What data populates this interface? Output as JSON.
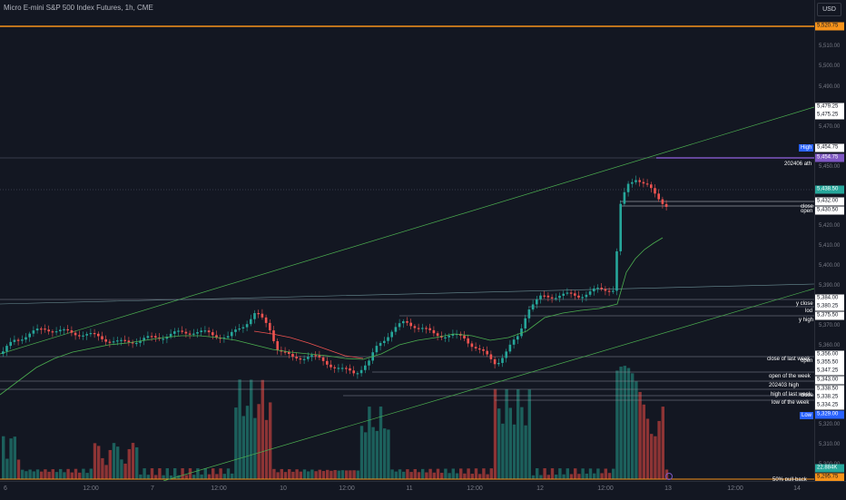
{
  "header": {
    "title": "Micro E-mini S&P 500 Index Futures, 1h, CME"
  },
  "currency_button": "USD",
  "price_ticks": [
    "5,510.00",
    "5,500.00",
    "5,490.00",
    "5,470.00",
    "5,450.00",
    "5,420.00",
    "5,410.00",
    "5,400.00",
    "5,390.00",
    "5,370.00",
    "5,360.00",
    "5,320.00",
    "5,310.00",
    "5,300.00"
  ],
  "price_labels": [
    {
      "text": "5,520.75",
      "bg": "#f7931a",
      "color": "#131722"
    },
    {
      "text": "5,479.25",
      "bg": "#ffffff",
      "color": "#131722"
    },
    {
      "text": "5,475.25",
      "bg": "#ffffff",
      "color": "#131722"
    },
    {
      "text": "5,454.75",
      "bg": "#ffffff",
      "color": "#131722"
    },
    {
      "text": "5,454.75",
      "bg": "#7e57c2",
      "color": "#ffffff"
    },
    {
      "text": "5,438.50",
      "bg": "#26a69a",
      "color": "#ffffff"
    },
    {
      "text": "5,432.00",
      "bg": "#ffffff",
      "color": "#131722"
    },
    {
      "text": "5,430.50",
      "bg": "#ffffff",
      "color": "#131722"
    },
    {
      "text": "5,384.00",
      "bg": "#ffffff",
      "color": "#131722"
    },
    {
      "text": "5,380.25",
      "bg": "#ffffff",
      "color": "#131722"
    },
    {
      "text": "5,375.50",
      "bg": "#ffffff",
      "color": "#131722"
    },
    {
      "text": "5,356.00",
      "bg": "#ffffff",
      "color": "#131722"
    },
    {
      "text": "5,355.50",
      "bg": "#ffffff",
      "color": "#131722"
    },
    {
      "text": "5,347.25",
      "bg": "#ffffff",
      "color": "#131722"
    },
    {
      "text": "5,343.00",
      "bg": "#ffffff",
      "color": "#131722"
    },
    {
      "text": "5,338.50",
      "bg": "#ffffff",
      "color": "#131722"
    },
    {
      "text": "5,338.25",
      "bg": "#ffffff",
      "color": "#131722"
    },
    {
      "text": "5,334.25",
      "bg": "#ffffff",
      "color": "#131722"
    },
    {
      "text": "5,329.00",
      "bg": "#2962ff",
      "color": "#ffffff"
    },
    {
      "text": "22.884K",
      "bg": "#26a69a",
      "color": "#ffffff"
    },
    {
      "text": "5,295.75",
      "bg": "#f7931a",
      "color": "#131722"
    }
  ],
  "line_labels": [
    {
      "text": "High",
      "bg": "#2962ff",
      "color": "#ffffff"
    },
    {
      "text": "202406 ath",
      "bg": "transparent",
      "color": "#ffffff"
    },
    {
      "text": "close",
      "bg": "transparent",
      "color": "#ffffff"
    },
    {
      "text": "open",
      "bg": "transparent",
      "color": "#ffffff"
    },
    {
      "text": "y close",
      "bg": "transparent",
      "color": "#ffffff"
    },
    {
      "text": "lod",
      "bg": "transparent",
      "color": "#ffffff"
    },
    {
      "text": "y high",
      "bg": "transparent",
      "color": "#ffffff"
    },
    {
      "text": "close of last week",
      "bg": "transparent",
      "color": "#ffffff"
    },
    {
      "text": "open",
      "bg": "transparent",
      "color": "#ffffff"
    },
    {
      "text": "open of the week",
      "bg": "transparent",
      "color": "#ffffff"
    },
    {
      "text": "202403 high",
      "bg": "transparent",
      "color": "#ffffff"
    },
    {
      "text": "high of last week",
      "bg": "transparent",
      "color": "#ffffff"
    },
    {
      "text": "close",
      "bg": "transparent",
      "color": "#ffffff"
    },
    {
      "text": "low of the week",
      "bg": "transparent",
      "color": "#ffffff"
    },
    {
      "text": "Low",
      "bg": "#2962ff",
      "color": "#ffffff"
    },
    {
      "text": "50% pull-back",
      "bg": "transparent",
      "color": "#ffffff"
    }
  ],
  "time_labels": [
    "6",
    "12:00",
    "7",
    "12:00",
    "10",
    "12:00",
    "11",
    "12:00",
    "12",
    "12:00",
    "13",
    "12:00",
    "14"
  ],
  "colors": {
    "up": "#26a69a",
    "down": "#ef5350",
    "bg": "#131722",
    "orange": "#f7931a",
    "purple": "#7e57c2",
    "green_line": "#4caf50"
  }
}
